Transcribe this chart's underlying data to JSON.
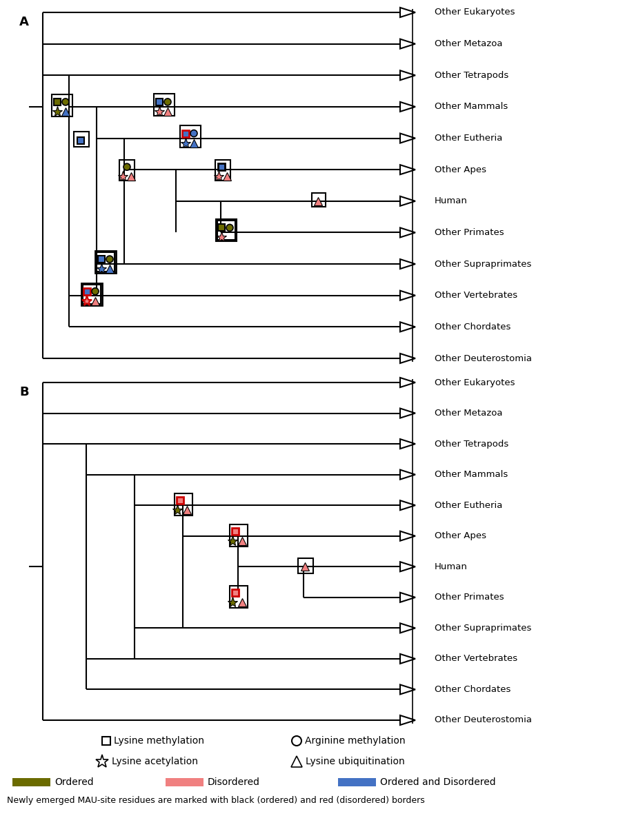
{
  "taxa": [
    "Other Eukaryotes",
    "Other Metazoa",
    "Other Tetrapods",
    "Other Mammals",
    "Other Eutheria",
    "Other Apes",
    "Human",
    "Other Primates",
    "Other Supraprimates",
    "Other Vertebrates",
    "Other Chordates",
    "Other Deuterostomia"
  ],
  "colors": {
    "olive": "#6B6B00",
    "blue": "#4472C4",
    "pink": "#F08080",
    "red_border": "#CC0000",
    "black": "#000000",
    "white": "#FFFFFF"
  },
  "footer_text": "Newly emerged MAU-site residues are marked with black (ordered) and red (disordered) borders"
}
